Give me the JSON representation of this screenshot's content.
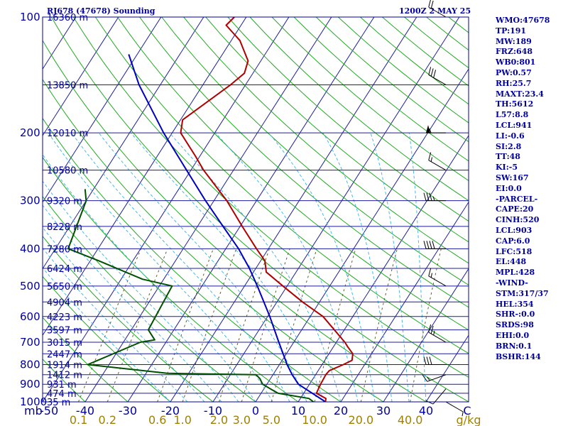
{
  "header": {
    "station": "RJ678 (47678) Sounding",
    "time": "1200Z  2 MAY 25"
  },
  "colors": {
    "frame": "#0000a0",
    "isobar": "#1c1c9e",
    "isotherm": "#1c1c9e",
    "dry_adiabat": "#22aa22",
    "moist_adiabat": "#4ab8e6",
    "mixing_ratio": "#606030",
    "temperature": "#b00000",
    "dewpoint": "#005000",
    "parcel": "#0000c0",
    "wind": "#000000"
  },
  "stats": [
    "WMO:47678",
    "TP:191",
    "MW:189",
    "FRZ:648",
    "WB0:801",
    "PW:0.57",
    "RH:25.7",
    "MAXT:23.4",
    "TH:5612",
    "L57:8.8",
    "LCL:941",
    "LI:-0.6",
    "SI:2.8",
    "TT:48",
    "KI:-5",
    "SW:167",
    "EI:0.0",
    "-PARCEL-",
    "CAPE:20",
    "CINH:520",
    "LCL:903",
    "CAP:6.0",
    "LFC:518",
    "EL:448",
    "MPL:428",
    "-WIND-",
    "STM:317/37",
    "HEL:354",
    "SHR-:0.0",
    "SRDS:98",
    "EHI:0.0",
    "BRN:0.1",
    "BSHR:144"
  ],
  "chart_data": {
    "type": "skew-t log-p sounding",
    "y_axis": {
      "unit": "mb",
      "scale": "log",
      "ylim": [
        1000,
        100
      ],
      "ticks": [
        "100",
        "200",
        "300",
        "400",
        "500",
        "600",
        "700",
        "800",
        "900",
        "1000"
      ]
    },
    "x_axis": {
      "unit": "C",
      "xlim": [
        -50,
        50
      ],
      "ticks": [
        "-50",
        "-40",
        "-30",
        "-20",
        "-10",
        "0",
        "10",
        "20",
        "30",
        "40",
        "C"
      ]
    },
    "y_axis_prefix": "mb",
    "mixing_ratio_unit": "g/kg",
    "mixing_ratio_ticks": [
      "0.1",
      "0.2",
      "0.6",
      "1.0",
      "2.0",
      "3.0",
      "5.0",
      "10.0",
      "20.0",
      "40.0"
    ],
    "heights": [
      {
        "p": 100,
        "label": "16360 m"
      },
      {
        "p": 150,
        "label": "13850 m"
      },
      {
        "p": 200,
        "label": "12010 m"
      },
      {
        "p": 250,
        "label": "10580 m"
      },
      {
        "p": 300,
        "label": "9320 m"
      },
      {
        "p": 350,
        "label": "8228 m"
      },
      {
        "p": 400,
        "label": "7280 m"
      },
      {
        "p": 450,
        "label": "6424 m"
      },
      {
        "p": 500,
        "label": "5650 m"
      },
      {
        "p": 550,
        "label": "4904 m"
      },
      {
        "p": 600,
        "label": "4223 m"
      },
      {
        "p": 650,
        "label": "3597 m"
      },
      {
        "p": 700,
        "label": "3015 m"
      },
      {
        "p": 750,
        "label": "2447 m"
      },
      {
        "p": 800,
        "label": "1914 m"
      },
      {
        "p": 850,
        "label": "1412 m"
      },
      {
        "p": 900,
        "label": "931 m"
      },
      {
        "p": 950,
        "label": "474 m"
      },
      {
        "p": 1000,
        "label": "35 m"
      }
    ],
    "temperature": [
      {
        "p": 1000,
        "t": 16.4
      },
      {
        "p": 980,
        "t": 16.0
      },
      {
        "p": 950,
        "t": 13.0
      },
      {
        "p": 925,
        "t": 12.8
      },
      {
        "p": 900,
        "t": 12.6
      },
      {
        "p": 850,
        "t": 12.4
      },
      {
        "p": 830,
        "t": 12.6
      },
      {
        "p": 800,
        "t": 15.0
      },
      {
        "p": 780,
        "t": 16.4
      },
      {
        "p": 750,
        "t": 15.6
      },
      {
        "p": 720,
        "t": 13.4
      },
      {
        "p": 700,
        "t": 12.0
      },
      {
        "p": 600,
        "t": 3.0
      },
      {
        "p": 550,
        "t": -4.0
      },
      {
        "p": 500,
        "t": -11.0
      },
      {
        "p": 460,
        "t": -17.0
      },
      {
        "p": 430,
        "t": -19.0
      },
      {
        "p": 400,
        "t": -22.8
      },
      {
        "p": 350,
        "t": -29.5
      },
      {
        "p": 300,
        "t": -37.0
      },
      {
        "p": 250,
        "t": -47.0
      },
      {
        "p": 230,
        "t": -51.0
      },
      {
        "p": 200,
        "t": -58.0
      },
      {
        "p": 185,
        "t": -59.5
      },
      {
        "p": 150,
        "t": -53.5
      },
      {
        "p": 140,
        "t": -52.0
      },
      {
        "p": 130,
        "t": -53.0
      },
      {
        "p": 115,
        "t": -58.0
      },
      {
        "p": 105,
        "t": -63.5
      },
      {
        "p": 100,
        "t": -62.8
      }
    ],
    "dewpoint": [
      {
        "p": 1000,
        "t": 13.6
      },
      {
        "p": 980,
        "t": 12.0
      },
      {
        "p": 950,
        "t": 4.0
      },
      {
        "p": 930,
        "t": 2.0
      },
      {
        "p": 900,
        "t": -1.0
      },
      {
        "p": 870,
        "t": -2.5
      },
      {
        "p": 850,
        "t": -4.0
      },
      {
        "p": 843,
        "t": -25.0
      },
      {
        "p": 800,
        "t": -45.0
      },
      {
        "p": 700,
        "t": -36.0
      },
      {
        "p": 690,
        "t": -33.0
      },
      {
        "p": 650,
        "t": -36.0
      },
      {
        "p": 500,
        "t": -37.0
      },
      {
        "p": 480,
        "t": -45.0
      },
      {
        "p": 430,
        "t": -58.0
      },
      {
        "p": 400,
        "t": -67.0
      },
      {
        "p": 300,
        "t": -70.0
      },
      {
        "p": 280,
        "t": -72.0
      }
    ],
    "parcel": [
      {
        "p": 1000,
        "t": 16.4
      },
      {
        "p": 900,
        "t": 7.4
      },
      {
        "p": 850,
        "t": 4.5
      },
      {
        "p": 800,
        "t": 1.8
      },
      {
        "p": 700,
        "t": -3.5
      },
      {
        "p": 600,
        "t": -9.5
      },
      {
        "p": 500,
        "t": -17.0
      },
      {
        "p": 450,
        "t": -21.5
      },
      {
        "p": 400,
        "t": -27.0
      },
      {
        "p": 350,
        "t": -34.0
      },
      {
        "p": 300,
        "t": -42.0
      },
      {
        "p": 250,
        "t": -51.0
      },
      {
        "p": 200,
        "t": -62.0
      },
      {
        "p": 150,
        "t": -75.0
      },
      {
        "p": 125,
        "t": -82.0
      }
    ],
    "wind_profile": [
      {
        "p": 1000,
        "dir": 120,
        "spd": 5
      },
      {
        "p": 925,
        "dir": 220,
        "spd": 10
      },
      {
        "p": 850,
        "dir": 250,
        "spd": 15
      },
      {
        "p": 800,
        "dir": 270,
        "spd": 30
      },
      {
        "p": 700,
        "dir": 300,
        "spd": 25
      },
      {
        "p": 500,
        "dir": 300,
        "spd": 15
      },
      {
        "p": 400,
        "dir": 270,
        "spd": 40
      },
      {
        "p": 300,
        "dir": 270,
        "spd": 35
      },
      {
        "p": 250,
        "dir": 300,
        "spd": 15
      },
      {
        "p": 200,
        "dir": 270,
        "spd": 55
      },
      {
        "p": 150,
        "dir": 300,
        "spd": 30
      },
      {
        "p": 100,
        "dir": 300,
        "spd": 20
      }
    ]
  }
}
